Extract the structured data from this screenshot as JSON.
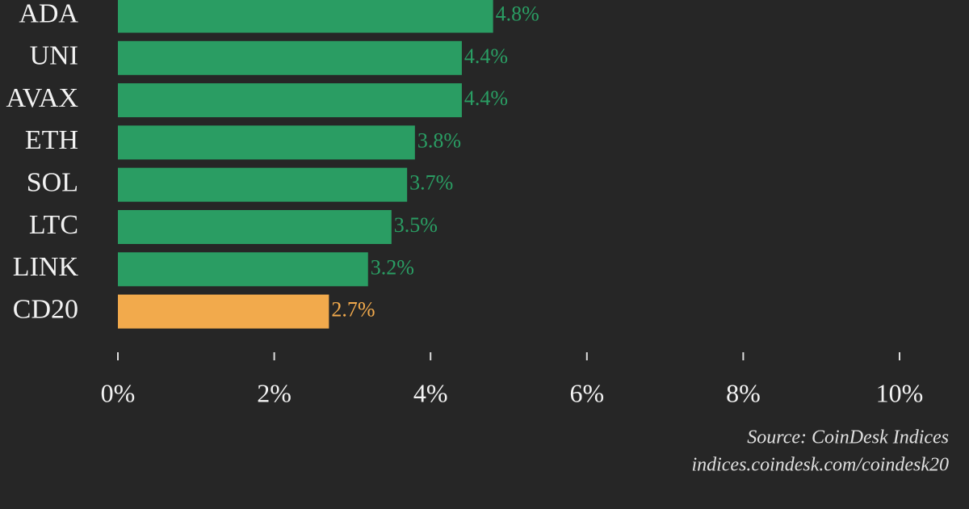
{
  "chart_data": {
    "type": "barh",
    "categories": [
      "ADA",
      "UNI",
      "AVAX",
      "ETH",
      "SOL",
      "LTC",
      "LINK",
      "CD20"
    ],
    "values": [
      4.8,
      4.4,
      4.4,
      3.8,
      3.7,
      3.5,
      3.2,
      2.7
    ],
    "value_labels": [
      "4.8%",
      "4.4%",
      "4.4%",
      "3.8%",
      "3.7%",
      "3.5%",
      "3.2%",
      "2.7%"
    ],
    "colors": [
      "#2a9d63",
      "#2a9d63",
      "#2a9d63",
      "#2a9d63",
      "#2a9d63",
      "#2a9d63",
      "#2a9d63",
      "#f2aa4c"
    ],
    "xlim": [
      0,
      10
    ],
    "xticks": [
      {
        "value": 0,
        "label": "0%"
      },
      {
        "value": 2,
        "label": "2%"
      },
      {
        "value": 4,
        "label": "4%"
      },
      {
        "value": 6,
        "label": "6%"
      },
      {
        "value": 8,
        "label": "8%"
      },
      {
        "value": 10,
        "label": "10%"
      }
    ],
    "source": "Source: CoinDesk Indices",
    "url": "indices.coindesk.com/coindesk20"
  }
}
